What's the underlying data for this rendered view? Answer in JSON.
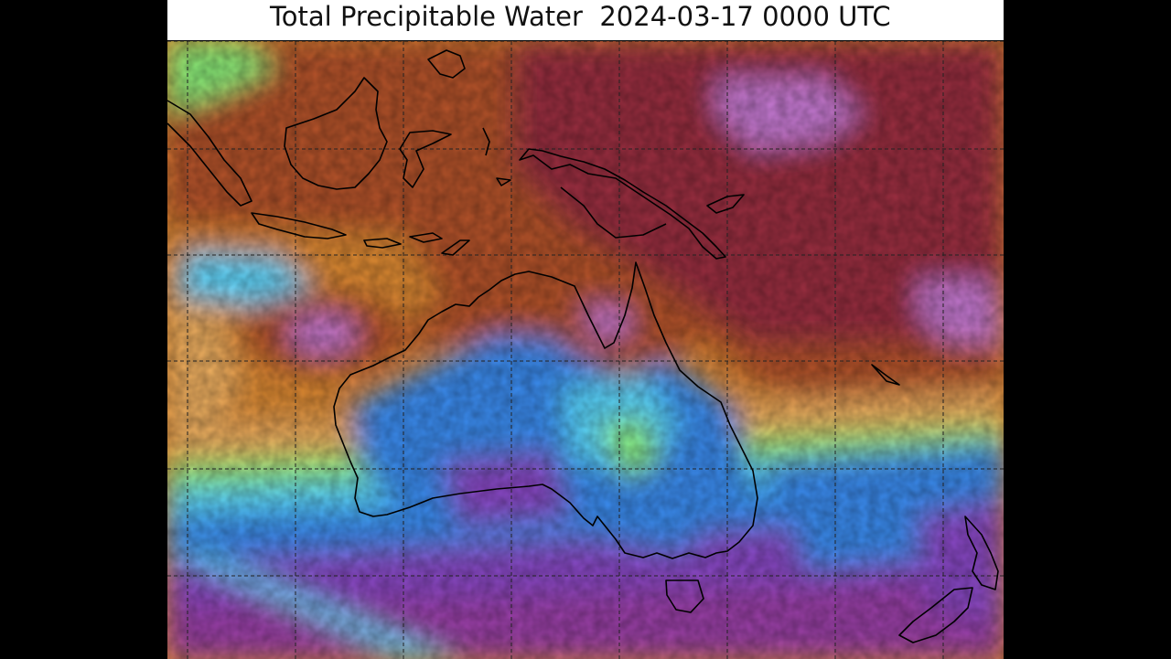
{
  "title": "Total Precipitable Water  2024-03-17 0000 UTC",
  "colors": {
    "very_moist": "#c77ad4",
    "moist_dark": "#9a2f3f",
    "moist": "#b5522a",
    "moderate": "#de8a32",
    "mid_light": "#f0b060",
    "green": "#8cf07a",
    "cyan": "#5ad8ff",
    "blue": "#3a8cf0",
    "dry": "#8a48c8",
    "very_dry": "#9b3fa8",
    "coast": "#000000",
    "grid": "#222222"
  }
}
